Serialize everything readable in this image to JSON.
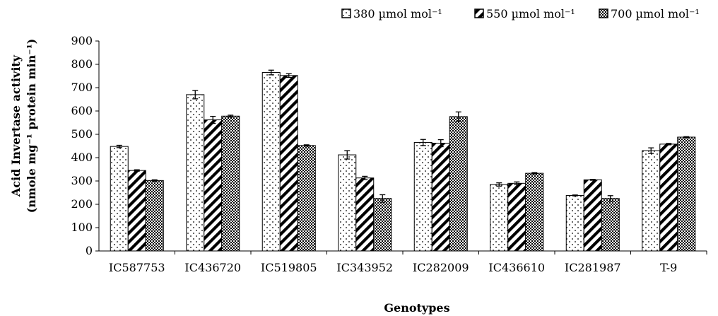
{
  "chart_data": {
    "type": "bar",
    "title": "",
    "xlabel": "Genotypes",
    "ylabel_line1": "Acid Invertase activity",
    "ylabel_line2": "(nmole mg⁻¹ protein min⁻¹)",
    "ylim": [
      0,
      900
    ],
    "yticks": [
      "0",
      "100",
      "200",
      "300",
      "400",
      "500",
      "600",
      "700",
      "800",
      "900"
    ],
    "categories": [
      "IC587753",
      "IC436720",
      "IC519805",
      "IC343952",
      "IC282009",
      "IC436610",
      "IC281987",
      "T-9"
    ],
    "legend_position": "top-right",
    "grid": false,
    "error_bars": true,
    "series": [
      {
        "name": "380 µmol mol⁻¹",
        "pattern": "dots",
        "values": [
          448,
          670,
          765,
          412,
          465,
          285,
          238,
          430
        ],
        "errors": [
          5,
          18,
          10,
          18,
          13,
          7,
          2,
          12
        ]
      },
      {
        "name": "550 µmol mol⁻¹",
        "pattern": "diagonal-stripes",
        "values": [
          345,
          562,
          752,
          313,
          462,
          290,
          305,
          458
        ],
        "errors": [
          3,
          15,
          8,
          7,
          15,
          6,
          2,
          3
        ]
      },
      {
        "name": "700 µmol mol⁻¹",
        "pattern": "checker",
        "values": [
          302,
          578,
          452,
          225,
          576,
          333,
          225,
          488
        ],
        "errors": [
          3,
          4,
          3,
          16,
          20,
          3,
          12,
          2
        ]
      }
    ]
  }
}
